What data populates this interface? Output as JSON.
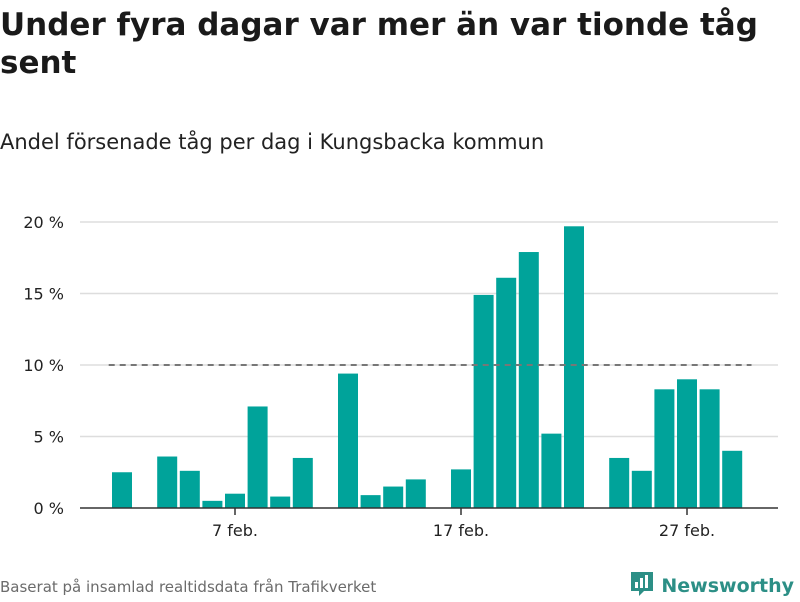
{
  "title": "Under fyra dagar var mer än var tionde tåg sent",
  "subtitle": "Andel försenade tåg per dag i Kungsbacka kommun",
  "source": "Baserat på insamlad realtidsdata från Trafikverket",
  "brand": {
    "name": "Newsworthy",
    "icon": "newsworthy-logo-icon",
    "color": "#2c8f86"
  },
  "colors": {
    "bar": "#00a39a",
    "grid": "#dddddd",
    "axis": "#333333",
    "reference": "#777777"
  },
  "chart_data": {
    "type": "bar",
    "title": "Under fyra dagar var mer än var tionde tåg sent",
    "subtitle": "Andel försenade tåg per dag i Kungsbacka kommun",
    "xlabel": "",
    "ylabel": "",
    "ylim": [
      0,
      20
    ],
    "y_ticks": [
      0,
      5,
      10,
      15,
      20
    ],
    "y_tick_labels": [
      "0 %",
      "5 %",
      "10 %",
      "15 %",
      "20 %"
    ],
    "x_day_range": [
      1,
      29
    ],
    "x_ticks": [
      {
        "day": 7,
        "label": "7 feb."
      },
      {
        "day": 17,
        "label": "17 feb."
      },
      {
        "day": 27,
        "label": "27 feb."
      }
    ],
    "days": [
      2,
      4,
      5,
      6,
      7,
      8,
      9,
      10,
      12,
      13,
      14,
      15,
      17,
      18,
      19,
      20,
      21,
      22,
      24,
      25,
      26,
      27,
      28,
      29
    ],
    "values": [
      2.5,
      3.6,
      2.6,
      0.5,
      1.0,
      7.1,
      0.8,
      3.5,
      9.4,
      0.9,
      1.5,
      2.0,
      2.7,
      14.9,
      16.1,
      17.9,
      5.2,
      19.7,
      3.5,
      2.6,
      8.3,
      9.0,
      8.3,
      4.0
    ],
    "reference_line": {
      "value": 10,
      "style": "dashed",
      "from_day": 1.5,
      "to_day": 29.5
    },
    "grid": true,
    "legend": "none"
  }
}
